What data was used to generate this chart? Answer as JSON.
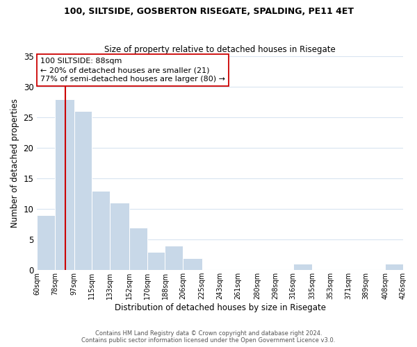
{
  "title": "100, SILTSIDE, GOSBERTON RISEGATE, SPALDING, PE11 4ET",
  "subtitle": "Size of property relative to detached houses in Risegate",
  "xlabel": "Distribution of detached houses by size in Risegate",
  "ylabel": "Number of detached properties",
  "bin_edges": [
    60,
    78,
    97,
    115,
    133,
    152,
    170,
    188,
    206,
    225,
    243,
    261,
    280,
    298,
    316,
    335,
    353,
    371,
    389,
    408,
    426
  ],
  "counts": [
    9,
    28,
    26,
    13,
    11,
    7,
    3,
    4,
    2,
    0,
    0,
    0,
    0,
    0,
    1,
    0,
    0,
    0,
    0,
    1
  ],
  "bar_color": "#c8d8e8",
  "bar_edge_color": "#ffffff",
  "grid_color": "#d8e4f0",
  "vline_x": 88,
  "vline_color": "#cc0000",
  "ylim": [
    0,
    35
  ],
  "yticks": [
    0,
    5,
    10,
    15,
    20,
    25,
    30,
    35
  ],
  "annotation_line1": "100 SILTSIDE: 88sqm",
  "annotation_line2": "← 20% of detached houses are smaller (21)",
  "annotation_line3": "77% of semi-detached houses are larger (80) →",
  "annotation_box_edge": "#cc0000",
  "footer1": "Contains HM Land Registry data © Crown copyright and database right 2024.",
  "footer2": "Contains public sector information licensed under the Open Government Licence v3.0.",
  "tick_labels": [
    "60sqm",
    "78sqm",
    "97sqm",
    "115sqm",
    "133sqm",
    "152sqm",
    "170sqm",
    "188sqm",
    "206sqm",
    "225sqm",
    "243sqm",
    "261sqm",
    "280sqm",
    "298sqm",
    "316sqm",
    "335sqm",
    "353sqm",
    "371sqm",
    "389sqm",
    "408sqm",
    "426sqm"
  ]
}
